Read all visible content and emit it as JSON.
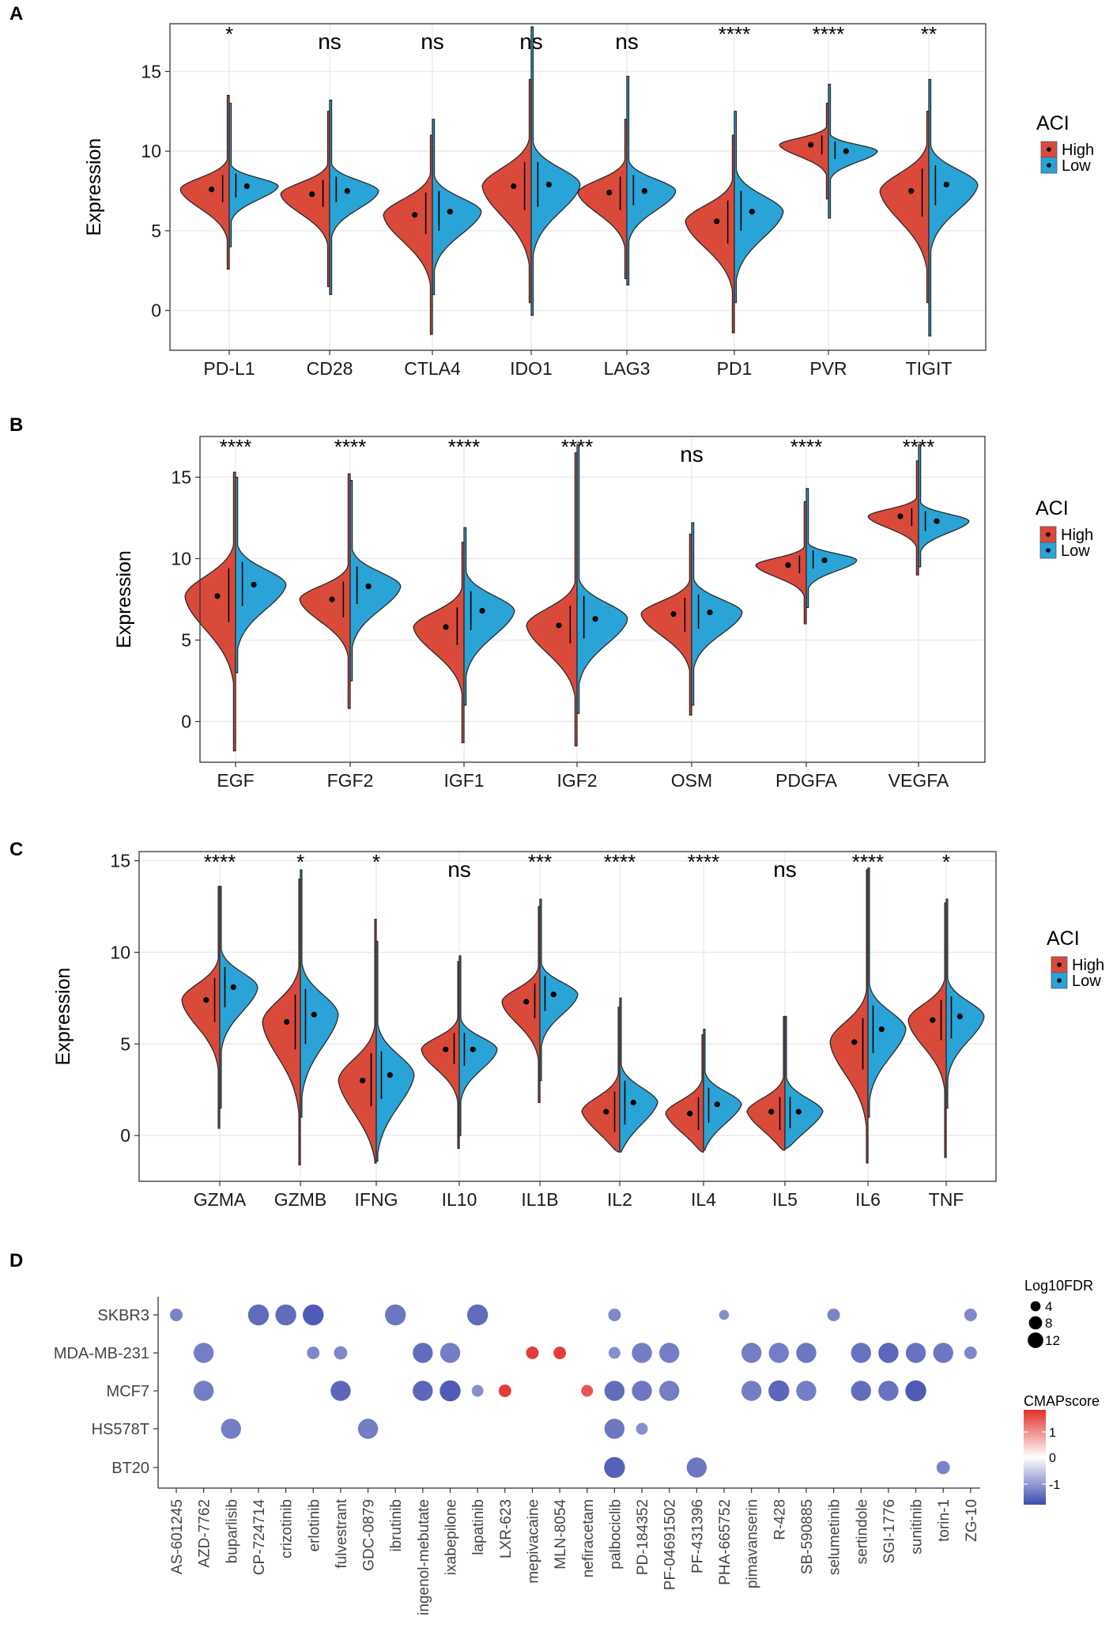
{
  "colors": {
    "high": "#DA4A3A",
    "low": "#2AA3D6",
    "gridline": "#EBEBEB",
    "cmap_low": "#3E4AAE",
    "cmap_mid": "#FFFFFF",
    "cmap_high": "#E1302A",
    "dot_outline": "#222222"
  },
  "chart_data": [
    {
      "type": "violin",
      "panel_label": "A",
      "ylabel": "Expression",
      "ylim": [
        -2.5,
        18
      ],
      "yticks": [
        "0",
        "5",
        "10",
        "15"
      ],
      "legend": {
        "title": "ACI",
        "entries": [
          "High",
          "Low"
        ]
      },
      "categories": [
        "PD-L1",
        "CD28",
        "CTLA4",
        "IDO1",
        "LAG3",
        "PD1",
        "PVR",
        "TIGIT"
      ],
      "significance": [
        "*",
        "ns",
        "ns",
        "ns",
        "ns",
        "****",
        "****",
        "**"
      ],
      "high": [
        {
          "min": 2.6,
          "max": 13.5,
          "q1": 6.8,
          "med": 7.6,
          "q3": 8.5,
          "spread": 1.0
        },
        {
          "min": 1.5,
          "max": 12.5,
          "q1": 6.5,
          "med": 7.3,
          "q3": 8.2,
          "spread": 1.0
        },
        {
          "min": -1.5,
          "max": 11.0,
          "q1": 4.8,
          "med": 6.0,
          "q3": 7.4,
          "spread": 1.4
        },
        {
          "min": 0.5,
          "max": 14.5,
          "q1": 6.3,
          "med": 7.8,
          "q3": 9.3,
          "spread": 1.6
        },
        {
          "min": 2.0,
          "max": 12.0,
          "q1": 6.3,
          "med": 7.4,
          "q3": 8.4,
          "spread": 1.1
        },
        {
          "min": -1.4,
          "max": 11.0,
          "q1": 4.2,
          "med": 5.6,
          "q3": 6.9,
          "spread": 1.4
        },
        {
          "min": 7.0,
          "max": 13.0,
          "q1": 9.8,
          "med": 10.4,
          "q3": 11.0,
          "spread": 0.6
        },
        {
          "min": 0.5,
          "max": 12.5,
          "q1": 5.9,
          "med": 7.5,
          "q3": 8.9,
          "spread": 1.6
        }
      ],
      "low": [
        {
          "min": 4.0,
          "max": 13.0,
          "q1": 7.1,
          "med": 7.8,
          "q3": 8.6,
          "spread": 0.7
        },
        {
          "min": 1.0,
          "max": 13.2,
          "q1": 6.8,
          "med": 7.5,
          "q3": 8.4,
          "spread": 0.9
        },
        {
          "min": 1.0,
          "max": 12.0,
          "q1": 5.0,
          "med": 6.2,
          "q3": 7.5,
          "spread": 1.2
        },
        {
          "min": -0.3,
          "max": 17.8,
          "q1": 6.5,
          "med": 7.9,
          "q3": 9.3,
          "spread": 1.4
        },
        {
          "min": 1.6,
          "max": 14.7,
          "q1": 6.6,
          "med": 7.5,
          "q3": 8.5,
          "spread": 1.0
        },
        {
          "min": 0.5,
          "max": 12.5,
          "q1": 5.0,
          "med": 6.2,
          "q3": 7.5,
          "spread": 1.4
        },
        {
          "min": 5.8,
          "max": 14.2,
          "q1": 9.5,
          "med": 10.0,
          "q3": 10.6,
          "spread": 0.55
        },
        {
          "min": -1.6,
          "max": 14.5,
          "q1": 6.6,
          "med": 7.9,
          "q3": 9.1,
          "spread": 1.3
        }
      ]
    },
    {
      "type": "violin",
      "panel_label": "B",
      "ylabel": "Expression",
      "ylim": [
        -2.5,
        17.5
      ],
      "yticks": [
        "0",
        "5",
        "10",
        "15"
      ],
      "legend": {
        "title": "ACI",
        "entries": [
          "High",
          "Low"
        ]
      },
      "categories": [
        "EGF",
        "FGF2",
        "IGF1",
        "IGF2",
        "OSM",
        "PDGFA",
        "VEGFA"
      ],
      "significance": [
        "****",
        "****",
        "****",
        "****",
        "ns",
        "****",
        "****"
      ],
      "high": [
        {
          "min": -1.8,
          "max": 15.3,
          "q1": 6.1,
          "med": 7.7,
          "q3": 9.4,
          "spread": 1.7
        },
        {
          "min": 0.8,
          "max": 15.2,
          "q1": 6.4,
          "med": 7.5,
          "q3": 8.6,
          "spread": 1.1
        },
        {
          "min": -1.3,
          "max": 11.0,
          "q1": 4.7,
          "med": 5.8,
          "q3": 7.0,
          "spread": 1.3
        },
        {
          "min": -1.5,
          "max": 16.5,
          "q1": 4.8,
          "med": 5.9,
          "q3": 7.1,
          "spread": 1.4
        },
        {
          "min": 0.4,
          "max": 11.5,
          "q1": 5.5,
          "med": 6.6,
          "q3": 7.6,
          "spread": 1.1
        },
        {
          "min": 6.0,
          "max": 13.5,
          "q1": 9.1,
          "med": 9.6,
          "q3": 10.2,
          "spread": 0.6
        },
        {
          "min": 9.0,
          "max": 16.0,
          "q1": 12.0,
          "med": 12.6,
          "q3": 13.1,
          "spread": 0.6
        }
      ],
      "low": [
        {
          "min": 3.0,
          "max": 15.0,
          "q1": 7.1,
          "med": 8.4,
          "q3": 9.8,
          "spread": 1.3
        },
        {
          "min": 2.5,
          "max": 14.8,
          "q1": 7.2,
          "med": 8.3,
          "q3": 9.5,
          "spread": 1.2
        },
        {
          "min": 1.0,
          "max": 11.9,
          "q1": 5.6,
          "med": 6.8,
          "q3": 8.0,
          "spread": 1.3
        },
        {
          "min": 0.5,
          "max": 17.0,
          "q1": 5.1,
          "med": 6.3,
          "q3": 7.7,
          "spread": 1.3
        },
        {
          "min": 1.0,
          "max": 12.2,
          "q1": 5.7,
          "med": 6.7,
          "q3": 7.8,
          "spread": 1.1
        },
        {
          "min": 7.0,
          "max": 14.3,
          "q1": 9.4,
          "med": 9.9,
          "q3": 10.5,
          "spread": 0.55
        },
        {
          "min": 9.5,
          "max": 17.0,
          "q1": 11.7,
          "med": 12.3,
          "q3": 12.9,
          "spread": 0.6
        }
      ]
    },
    {
      "type": "violin",
      "panel_label": "C",
      "ylabel": "Expression",
      "ylim": [
        -2.5,
        15.5
      ],
      "yticks": [
        "0",
        "5",
        "10",
        "15"
      ],
      "legend": {
        "title": "ACI",
        "entries": [
          "High",
          "Low"
        ]
      },
      "categories": [
        "GZMA",
        "GZMB",
        "IFNG",
        "IL10",
        "IL1B",
        "IL2",
        "IL4",
        "IL5",
        "IL6",
        "TNF"
      ],
      "significance": [
        "****",
        "*",
        "*",
        "ns",
        "***",
        "****",
        "****",
        "ns",
        "****",
        "*"
      ],
      "high": [
        {
          "min": 0.4,
          "max": 13.6,
          "q1": 6.2,
          "med": 7.4,
          "q3": 8.6,
          "spread": 1.2
        },
        {
          "min": -1.6,
          "max": 14.0,
          "q1": 4.7,
          "med": 6.2,
          "q3": 7.7,
          "spread": 1.6
        },
        {
          "min": -1.5,
          "max": 11.8,
          "q1": 1.6,
          "med": 3.0,
          "q3": 4.5,
          "spread": 1.6
        },
        {
          "min": -0.7,
          "max": 9.5,
          "q1": 3.9,
          "med": 4.7,
          "q3": 5.6,
          "spread": 0.9
        },
        {
          "min": 1.8,
          "max": 12.5,
          "q1": 6.4,
          "med": 7.3,
          "q3": 8.3,
          "spread": 1.0
        },
        {
          "min": -0.9,
          "max": 7.0,
          "q1": 0.2,
          "med": 1.3,
          "q3": 2.4,
          "spread": 1.1
        },
        {
          "min": -0.9,
          "max": 5.5,
          "q1": 0.3,
          "med": 1.2,
          "q3": 2.1,
          "spread": 1.0
        },
        {
          "min": -0.8,
          "max": 6.5,
          "q1": 0.3,
          "med": 1.3,
          "q3": 2.1,
          "spread": 1.0
        },
        {
          "min": -1.5,
          "max": 14.5,
          "q1": 3.6,
          "med": 5.1,
          "q3": 6.4,
          "spread": 1.5
        },
        {
          "min": -1.2,
          "max": 12.7,
          "q1": 5.2,
          "med": 6.3,
          "q3": 7.4,
          "spread": 1.2
        }
      ],
      "low": [
        {
          "min": 1.5,
          "max": 13.6,
          "q1": 7.0,
          "med": 8.1,
          "q3": 9.2,
          "spread": 1.1
        },
        {
          "min": 1.0,
          "max": 14.5,
          "q1": 5.0,
          "med": 6.6,
          "q3": 8.0,
          "spread": 1.5
        },
        {
          "min": -1.4,
          "max": 10.6,
          "q1": 2.0,
          "med": 3.3,
          "q3": 4.6,
          "spread": 1.5
        },
        {
          "min": 0.0,
          "max": 9.8,
          "q1": 3.8,
          "med": 4.7,
          "q3": 5.6,
          "spread": 0.9
        },
        {
          "min": 3.0,
          "max": 12.9,
          "q1": 6.8,
          "med": 7.7,
          "q3": 8.7,
          "spread": 0.9
        },
        {
          "min": -0.9,
          "max": 7.5,
          "q1": 0.6,
          "med": 1.8,
          "q3": 3.0,
          "spread": 1.1
        },
        {
          "min": -0.8,
          "max": 5.8,
          "q1": 0.7,
          "med": 1.7,
          "q3": 2.6,
          "spread": 0.95
        },
        {
          "min": -0.7,
          "max": 6.5,
          "q1": 0.4,
          "med": 1.3,
          "q3": 2.1,
          "spread": 1.0
        },
        {
          "min": 1.0,
          "max": 14.6,
          "q1": 4.5,
          "med": 5.8,
          "q3": 7.1,
          "spread": 1.3
        },
        {
          "min": 1.5,
          "max": 12.9,
          "q1": 5.3,
          "med": 6.5,
          "q3": 7.6,
          "spread": 1.1
        }
      ]
    },
    {
      "type": "dot",
      "panel_label": "D",
      "x_categories": [
        "AS-601245",
        "AZD-7762",
        "buparlisib",
        "CP-724714",
        "crizotinib",
        "erlotinib",
        "fulvestrant",
        "GDC-0879",
        "ibrutinib",
        "ingenol-mebutate",
        "ixabepilone",
        "lapatinib",
        "LXR-623",
        "mepivacaine",
        "MLN-8054",
        "nefiracetam",
        "palbociclib",
        "PD-184352",
        "PF-04691502",
        "PF-431396",
        "PHA-665752",
        "pimavanserin",
        "R-428",
        "SB-590885",
        "selumetinib",
        "sertindole",
        "SGI-1776",
        "sunitinib",
        "torin-1",
        "ZG-10"
      ],
      "y_categories": [
        "SKBR3",
        "MDA-MB-231",
        "MCF7",
        "HS578T",
        "BT20"
      ],
      "size_legend": {
        "title": "Log10FDR",
        "breaks": [
          "4",
          "8",
          "12"
        ]
      },
      "color_legend": {
        "title": "CMAPscore",
        "labels": [
          "1",
          "0",
          "-1"
        ]
      },
      "cmap_range": [
        -1.6,
        1.6
      ],
      "fdr_range": [
        0,
        14
      ],
      "points": [
        {
          "x": "AS-601245",
          "y": "SKBR3",
          "fdr": 3,
          "score": -1.1
        },
        {
          "x": "CP-724714",
          "y": "SKBR3",
          "fdr": 11,
          "score": -1.3
        },
        {
          "x": "crizotinib",
          "y": "SKBR3",
          "fdr": 11,
          "score": -1.3
        },
        {
          "x": "erlotinib",
          "y": "SKBR3",
          "fdr": 11,
          "score": -1.45
        },
        {
          "x": "ibrutinib",
          "y": "SKBR3",
          "fdr": 11,
          "score": -1.2
        },
        {
          "x": "lapatinib",
          "y": "SKBR3",
          "fdr": 11,
          "score": -1.3
        },
        {
          "x": "palbociclib",
          "y": "SKBR3",
          "fdr": 3,
          "score": -1.05
        },
        {
          "x": "PHA-665752",
          "y": "SKBR3",
          "fdr": 1.5,
          "score": -1.0
        },
        {
          "x": "selumetinib",
          "y": "SKBR3",
          "fdr": 3,
          "score": -1.1
        },
        {
          "x": "ZG-10",
          "y": "SKBR3",
          "fdr": 3,
          "score": -1.05
        },
        {
          "x": "AZD-7762",
          "y": "MDA-MB-231",
          "fdr": 10,
          "score": -1.15
        },
        {
          "x": "erlotinib",
          "y": "MDA-MB-231",
          "fdr": 3,
          "score": -1.05
        },
        {
          "x": "fulvestrant",
          "y": "MDA-MB-231",
          "fdr": 3.5,
          "score": -1.05
        },
        {
          "x": "ingenol-mebutate",
          "y": "MDA-MB-231",
          "fdr": 10,
          "score": -1.3
        },
        {
          "x": "ixabepilone",
          "y": "MDA-MB-231",
          "fdr": 10,
          "score": -1.15
        },
        {
          "x": "mepivacaine",
          "y": "MDA-MB-231",
          "fdr": 3,
          "score": 1.5
        },
        {
          "x": "MLN-8054",
          "y": "MDA-MB-231",
          "fdr": 3,
          "score": 1.5
        },
        {
          "x": "palbociclib",
          "y": "MDA-MB-231",
          "fdr": 2.5,
          "score": -1.0
        },
        {
          "x": "PD-184352",
          "y": "MDA-MB-231",
          "fdr": 10,
          "score": -1.15
        },
        {
          "x": "PF-04691502",
          "y": "MDA-MB-231",
          "fdr": 10,
          "score": -1.15
        },
        {
          "x": "pimavanserin",
          "y": "MDA-MB-231",
          "fdr": 10,
          "score": -1.15
        },
        {
          "x": "R-428",
          "y": "MDA-MB-231",
          "fdr": 10,
          "score": -1.15
        },
        {
          "x": "SB-590885",
          "y": "MDA-MB-231",
          "fdr": 10,
          "score": -1.2
        },
        {
          "x": "sertindole",
          "y": "MDA-MB-231",
          "fdr": 10,
          "score": -1.25
        },
        {
          "x": "SGI-1776",
          "y": "MDA-MB-231",
          "fdr": 10,
          "score": -1.35
        },
        {
          "x": "sunitinib",
          "y": "MDA-MB-231",
          "fdr": 10,
          "score": -1.25
        },
        {
          "x": "torin-1",
          "y": "MDA-MB-231",
          "fdr": 10,
          "score": -1.2
        },
        {
          "x": "ZG-10",
          "y": "MDA-MB-231",
          "fdr": 3,
          "score": -1.05
        },
        {
          "x": "AZD-7762",
          "y": "MCF7",
          "fdr": 10,
          "score": -1.15
        },
        {
          "x": "fulvestrant",
          "y": "MCF7",
          "fdr": 10,
          "score": -1.35
        },
        {
          "x": "ingenol-mebutate",
          "y": "MCF7",
          "fdr": 10,
          "score": -1.35
        },
        {
          "x": "ixabepilone",
          "y": "MCF7",
          "fdr": 11,
          "score": -1.45
        },
        {
          "x": "lapatinib",
          "y": "MCF7",
          "fdr": 2.5,
          "score": -1.0
        },
        {
          "x": "LXR-623",
          "y": "MCF7",
          "fdr": 3,
          "score": 1.5
        },
        {
          "x": "nefiracetam",
          "y": "MCF7",
          "fdr": 2.5,
          "score": 1.3
        },
        {
          "x": "palbociclib",
          "y": "MCF7",
          "fdr": 10,
          "score": -1.3
        },
        {
          "x": "PD-184352",
          "y": "MCF7",
          "fdr": 10,
          "score": -1.2
        },
        {
          "x": "PF-04691502",
          "y": "MCF7",
          "fdr": 10,
          "score": -1.15
        },
        {
          "x": "pimavanserin",
          "y": "MCF7",
          "fdr": 10,
          "score": -1.15
        },
        {
          "x": "R-428",
          "y": "MCF7",
          "fdr": 11,
          "score": -1.35
        },
        {
          "x": "SB-590885",
          "y": "MCF7",
          "fdr": 10,
          "score": -1.15
        },
        {
          "x": "sertindole",
          "y": "MCF7",
          "fdr": 10,
          "score": -1.3
        },
        {
          "x": "SGI-1776",
          "y": "MCF7",
          "fdr": 10,
          "score": -1.25
        },
        {
          "x": "sunitinib",
          "y": "MCF7",
          "fdr": 11,
          "score": -1.45
        },
        {
          "x": "buparlisib",
          "y": "HS578T",
          "fdr": 10,
          "score": -1.15
        },
        {
          "x": "GDC-0879",
          "y": "HS578T",
          "fdr": 10,
          "score": -1.15
        },
        {
          "x": "palbociclib",
          "y": "HS578T",
          "fdr": 10,
          "score": -1.2
        },
        {
          "x": "PD-184352",
          "y": "HS578T",
          "fdr": 2.5,
          "score": -1.0
        },
        {
          "x": "palbociclib",
          "y": "BT20",
          "fdr": 11,
          "score": -1.4
        },
        {
          "x": "PF-431396",
          "y": "BT20",
          "fdr": 10,
          "score": -1.2
        },
        {
          "x": "torin-1",
          "y": "BT20",
          "fdr": 3.5,
          "score": -1.1
        }
      ]
    }
  ]
}
